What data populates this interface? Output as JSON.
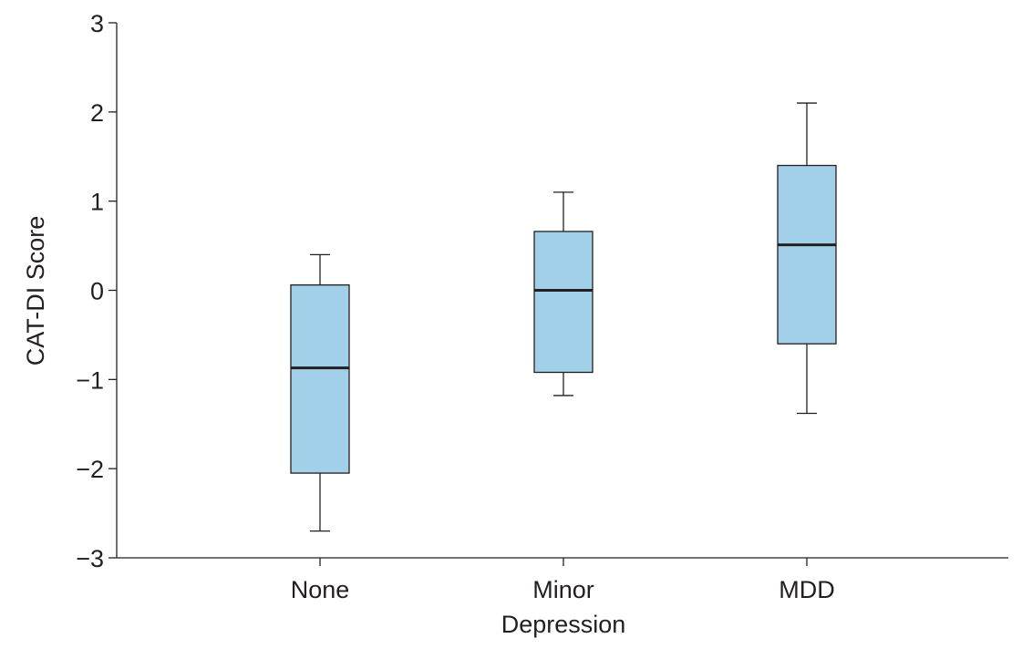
{
  "chart_data": {
    "type": "box",
    "title": "",
    "xlabel": "",
    "ylabel": "CAT-DI Score",
    "ylim": [
      -3,
      3
    ],
    "yticks": [
      {
        "value": 3,
        "label": "3"
      },
      {
        "value": 2,
        "label": "2"
      },
      {
        "value": 1,
        "label": "1"
      },
      {
        "value": 0,
        "label": "0"
      },
      {
        "value": -1,
        "label": "−1"
      },
      {
        "value": -2,
        "label": "−2"
      },
      {
        "value": -3,
        "label": "−3"
      }
    ],
    "grid": false,
    "box_color": "#a2d0e8",
    "categories": [
      {
        "lines": [
          "None"
        ],
        "min": -2.7,
        "q1": -2.05,
        "median": -0.87,
        "q3": 0.06,
        "max": 0.4
      },
      {
        "lines": [
          "Minor",
          "Depression"
        ],
        "min": -1.18,
        "q1": -0.92,
        "median": 0.0,
        "q3": 0.66,
        "max": 1.1
      },
      {
        "lines": [
          "MDD"
        ],
        "min": -1.38,
        "q1": -0.6,
        "median": 0.51,
        "q3": 1.4,
        "max": 2.1
      }
    ]
  }
}
